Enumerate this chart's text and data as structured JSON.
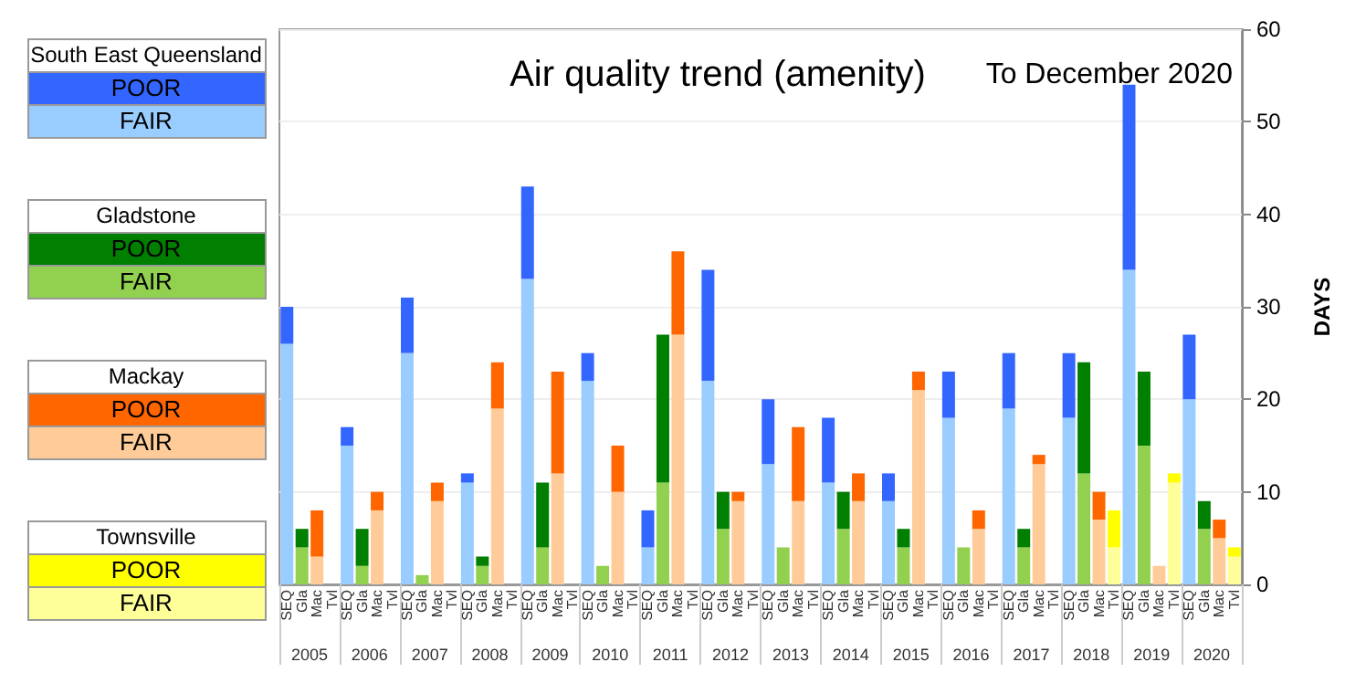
{
  "chart_data": {
    "type": "bar",
    "title": "Air quality trend (amenity)",
    "subtitle": "To December 2020",
    "ylabel": "DAYS",
    "stacked": true,
    "grid": "y",
    "ylim": [
      0,
      60
    ],
    "yticks": [
      0,
      10,
      20,
      30,
      40,
      50,
      60
    ],
    "categories": [
      "SEQ",
      "Gla",
      "Mac",
      "Tvl",
      "SEQ",
      "Gla",
      "Mac",
      "Tvl",
      "SEQ",
      "Gla",
      "Mac",
      "Tvl",
      "SEQ",
      "Gla",
      "Mac",
      "Tvl",
      "SEQ",
      "Gla",
      "Mac",
      "Tvl",
      "SEQ",
      "Gla",
      "Mac",
      "Tvl",
      "SEQ",
      "Gla",
      "Mac",
      "Tvl",
      "SEQ",
      "Gla",
      "Mac",
      "Tvl",
      "SEQ",
      "Gla",
      "Mac",
      "Tvl",
      "SEQ",
      "Gla",
      "Mac",
      "Tvl",
      "SEQ",
      "Gla",
      "Mac",
      "Tvl",
      "SEQ",
      "Gla",
      "Mac",
      "Tvl",
      "SEQ",
      "Gla",
      "Mac",
      "Tvl",
      "SEQ",
      "Gla",
      "Mac",
      "Tvl",
      "SEQ",
      "Gla",
      "Mac",
      "Tvl",
      "SEQ",
      "Gla",
      "Mac",
      "Tvl"
    ],
    "annotations": [
      "South East Queensland",
      "Gladstone",
      "Mackay",
      "Townsville",
      "2005",
      "2006",
      "2007",
      "2008",
      "2009",
      "2010",
      "2011",
      "2012",
      "2013",
      "2014",
      "2015",
      "2016",
      "2017",
      "2018",
      "2019",
      "2020"
    ],
    "series": [
      {
        "name": "FAIR",
        "color": "#99ccff",
        "values": [
          26,
          null,
          null,
          null,
          15,
          null,
          null,
          null,
          25,
          null,
          null,
          null,
          11,
          null,
          null,
          null,
          33,
          null,
          null,
          null,
          22,
          null,
          null,
          null,
          4,
          null,
          null,
          null,
          22,
          null,
          null,
          null,
          13,
          null,
          null,
          null,
          11,
          null,
          null,
          null,
          9,
          null,
          null,
          null,
          18,
          null,
          null,
          null,
          19,
          null,
          null,
          null,
          18,
          null,
          null,
          null,
          34,
          null,
          null,
          null,
          20,
          null,
          null,
          null
        ]
      },
      {
        "name": "POOR",
        "color": "#3366ff",
        "values": [
          4,
          null,
          null,
          null,
          2,
          null,
          null,
          null,
          6,
          null,
          null,
          null,
          1,
          null,
          null,
          null,
          10,
          null,
          null,
          null,
          3,
          null,
          null,
          null,
          4,
          null,
          null,
          null,
          12,
          null,
          null,
          null,
          7,
          null,
          null,
          null,
          7,
          null,
          null,
          null,
          3,
          null,
          null,
          null,
          5,
          null,
          null,
          null,
          6,
          null,
          null,
          null,
          7,
          null,
          null,
          null,
          20,
          null,
          null,
          null,
          7,
          null,
          null,
          null
        ]
      },
      {
        "name": "FAIR",
        "color": "#92d050",
        "values": [
          null,
          4,
          null,
          null,
          null,
          2,
          null,
          null,
          null,
          1,
          null,
          null,
          null,
          2,
          null,
          null,
          null,
          4,
          null,
          null,
          null,
          2,
          null,
          null,
          null,
          11,
          null,
          null,
          null,
          6,
          null,
          null,
          null,
          4,
          null,
          null,
          null,
          6,
          null,
          null,
          null,
          4,
          null,
          null,
          null,
          4,
          null,
          null,
          null,
          4,
          null,
          null,
          null,
          12,
          null,
          null,
          null,
          15,
          null,
          null,
          null,
          6,
          null,
          null
        ]
      },
      {
        "name": "POOR",
        "color": "#007f00",
        "values": [
          null,
          2,
          null,
          null,
          null,
          4,
          null,
          null,
          null,
          0,
          null,
          null,
          null,
          1,
          null,
          null,
          null,
          7,
          null,
          null,
          null,
          0,
          null,
          null,
          null,
          16,
          null,
          null,
          null,
          4,
          null,
          null,
          null,
          0,
          null,
          null,
          null,
          4,
          null,
          null,
          null,
          2,
          null,
          null,
          null,
          0,
          null,
          null,
          null,
          2,
          null,
          null,
          null,
          12,
          null,
          null,
          null,
          8,
          null,
          null,
          null,
          3,
          null,
          null
        ]
      },
      {
        "name": "FAIR",
        "color": "#ffcc99",
        "values": [
          null,
          null,
          3,
          null,
          null,
          null,
          8,
          null,
          null,
          null,
          9,
          null,
          null,
          null,
          19,
          null,
          null,
          null,
          12,
          null,
          null,
          null,
          10,
          null,
          null,
          null,
          27,
          null,
          null,
          null,
          9,
          null,
          null,
          null,
          9,
          null,
          null,
          null,
          9,
          null,
          null,
          null,
          21,
          null,
          null,
          null,
          6,
          null,
          null,
          null,
          13,
          null,
          null,
          null,
          7,
          null,
          null,
          null,
          2,
          null,
          null,
          null,
          5,
          null
        ]
      },
      {
        "name": "POOR",
        "color": "#ff6600",
        "values": [
          null,
          null,
          5,
          null,
          null,
          null,
          2,
          null,
          null,
          null,
          2,
          null,
          null,
          null,
          5,
          null,
          null,
          null,
          11,
          null,
          null,
          null,
          5,
          null,
          null,
          null,
          9,
          null,
          null,
          null,
          1,
          null,
          null,
          null,
          8,
          null,
          null,
          null,
          3,
          null,
          null,
          null,
          2,
          null,
          null,
          null,
          2,
          null,
          null,
          null,
          1,
          null,
          null,
          null,
          3,
          null,
          null,
          null,
          0,
          null,
          null,
          null,
          2,
          null
        ]
      },
      {
        "name": "FAIR",
        "color": "#ffff99",
        "values": [
          null,
          null,
          null,
          null,
          null,
          null,
          null,
          null,
          null,
          null,
          null,
          null,
          null,
          null,
          null,
          null,
          null,
          null,
          null,
          null,
          null,
          null,
          null,
          null,
          null,
          null,
          null,
          null,
          null,
          null,
          null,
          null,
          null,
          null,
          null,
          null,
          null,
          null,
          null,
          null,
          null,
          null,
          null,
          null,
          null,
          null,
          null,
          null,
          null,
          null,
          null,
          null,
          null,
          null,
          null,
          4,
          null,
          null,
          null,
          11,
          null,
          null,
          null,
          3
        ]
      },
      {
        "name": "POOR",
        "color": "#ffff00",
        "values": [
          null,
          null,
          null,
          null,
          null,
          null,
          null,
          null,
          null,
          null,
          null,
          null,
          null,
          null,
          null,
          null,
          null,
          null,
          null,
          null,
          null,
          null,
          null,
          null,
          null,
          null,
          null,
          null,
          null,
          null,
          null,
          null,
          null,
          null,
          null,
          null,
          null,
          null,
          null,
          null,
          null,
          null,
          null,
          null,
          null,
          null,
          null,
          null,
          null,
          null,
          null,
          null,
          null,
          null,
          null,
          4,
          null,
          null,
          null,
          1,
          null,
          null,
          null,
          1
        ]
      }
    ]
  }
}
